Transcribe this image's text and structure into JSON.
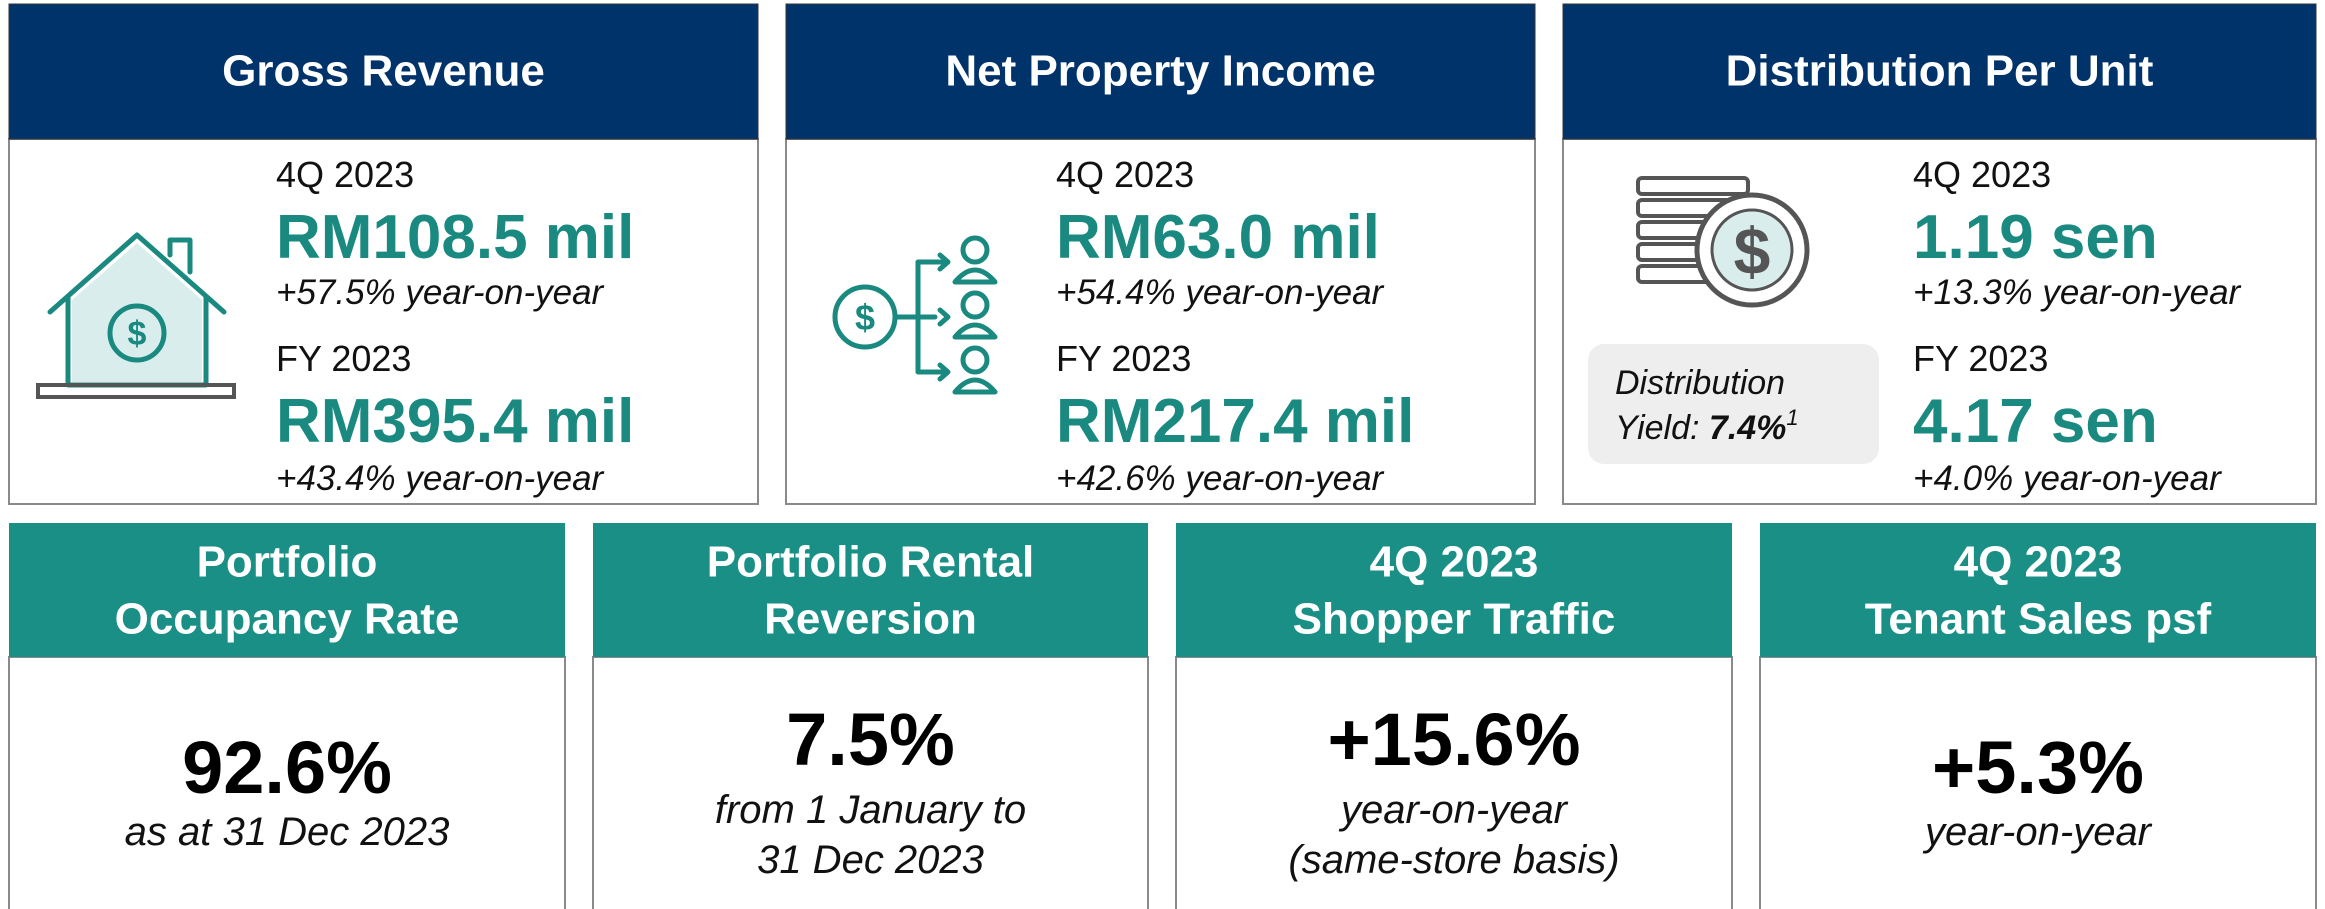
{
  "top_cards": [
    {
      "title": "Gross Revenue",
      "period_1": "4Q 2023",
      "value_1": "RM108.5 mil",
      "change_1": "+57.5% year-on-year",
      "period_2": "FY 2023",
      "value_2": "RM395.4 mil",
      "change_2": "+43.4% year-on-year"
    },
    {
      "title": "Net Property Income",
      "period_1": "4Q 2023",
      "value_1": "RM63.0 mil",
      "change_1": "+54.4% year-on-year",
      "period_2": "FY 2023",
      "value_2": "RM217.4 mil",
      "change_2": "+42.6% year-on-year"
    },
    {
      "title": "Distribution Per Unit",
      "period_1": "4Q 2023",
      "value_1": "1.19 sen",
      "change_1": "+13.3% year-on-year",
      "period_2": "FY 2023",
      "value_2": "4.17 sen",
      "change_2": "+4.0% year-on-year"
    }
  ],
  "yield_note": {
    "line_1": "Distribution",
    "label": "Yield:",
    "value": "7.4%",
    "footnote": "1"
  },
  "bottom_cards": [
    {
      "title_lines": [
        "Portfolio",
        "Occupancy Rate"
      ],
      "value": "92.6%",
      "note_lines": [
        "as at 31 Dec 2023"
      ]
    },
    {
      "title_lines": [
        "Portfolio Rental",
        "Reversion"
      ],
      "value": "7.5%",
      "note_lines": [
        "from 1 January to",
        "31 Dec 2023"
      ]
    },
    {
      "title_lines": [
        "4Q 2023",
        "Shopper Traffic"
      ],
      "value": "+15.6%",
      "note_lines": [
        "year-on-year",
        "(same-store basis)"
      ]
    },
    {
      "title_lines": [
        "4Q 2023",
        "Tenant Sales psf"
      ],
      "value": "+5.3%",
      "note_lines": [
        "year-on-year"
      ]
    }
  ]
}
